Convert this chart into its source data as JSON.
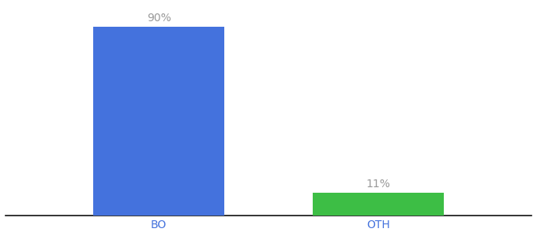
{
  "categories": [
    "BO",
    "OTH"
  ],
  "values": [
    90,
    11
  ],
  "bar_colors": [
    "#4472DD",
    "#3DBE45"
  ],
  "value_labels": [
    "90%",
    "11%"
  ],
  "background_color": "#ffffff",
  "ylim": [
    0,
    100
  ],
  "bar_width": 0.6,
  "label_fontsize": 10,
  "tick_fontsize": 10,
  "label_color": "#999999",
  "tick_color": "#4472DD"
}
